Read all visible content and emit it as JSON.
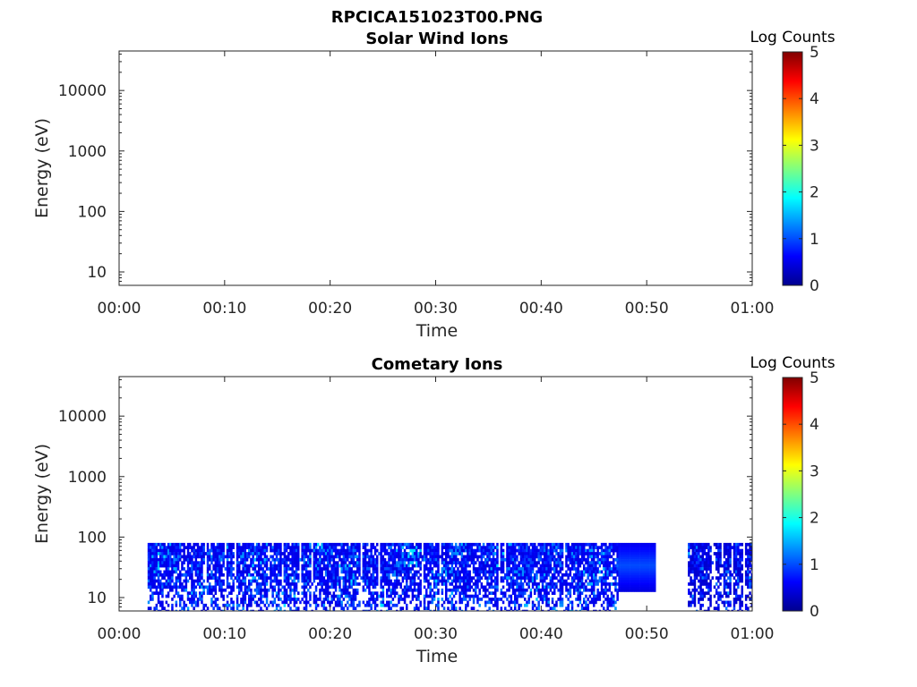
{
  "figure_title": "RPCICA151023T00.PNG",
  "colorbar_ticks": [
    "0",
    "1",
    "2",
    "3",
    "4",
    "5"
  ],
  "chart_data": [
    {
      "type": "heatmap",
      "title": "Solar Wind Ions",
      "xlabel": "Time",
      "ylabel": "Energy (eV)",
      "x_ticks": [
        "00:00",
        "00:10",
        "00:20",
        "00:30",
        "00:40",
        "00:50",
        "01:00"
      ],
      "x_range_minutes": [
        0,
        60
      ],
      "y_scale": "log",
      "y_ticks": [
        "10",
        "100",
        "1000",
        "10000"
      ],
      "y_range_eV": [
        6,
        45000
      ],
      "colorbar_label": "Log Counts",
      "colorbar_range": [
        0,
        5
      ],
      "colormap": "jet",
      "blocks": []
    },
    {
      "type": "heatmap",
      "title": "Cometary Ions",
      "xlabel": "Time",
      "ylabel": "Energy (eV)",
      "x_ticks": [
        "00:00",
        "00:10",
        "00:20",
        "00:30",
        "00:40",
        "00:50",
        "01:00"
      ],
      "x_range_minutes": [
        0,
        60
      ],
      "y_scale": "log",
      "y_ticks": [
        "10",
        "100",
        "1000",
        "10000"
      ],
      "y_range_eV": [
        6,
        45000
      ],
      "colorbar_label": "Log Counts",
      "colorbar_range": [
        0,
        5
      ],
      "colormap": "jet",
      "blocks": [
        {
          "t_start_min": 2.7,
          "t_end_min": 47.3,
          "e_min_eV": 6,
          "e_max_eV": 80,
          "log_counts_typical": 0.8,
          "log_counts_max": 1.8,
          "speckled": true
        },
        {
          "t_start_min": 47.3,
          "t_end_min": 50.7,
          "e_min_eV": 13,
          "e_max_eV": 80,
          "log_counts_typical": 0.6,
          "log_counts_max": 1.0,
          "speckled": false
        },
        {
          "t_start_min": 53.9,
          "t_end_min": 60.3,
          "e_min_eV": 6,
          "e_max_eV": 80,
          "log_counts_typical": 0.6,
          "log_counts_max": 1.6,
          "speckled": true
        }
      ]
    }
  ]
}
